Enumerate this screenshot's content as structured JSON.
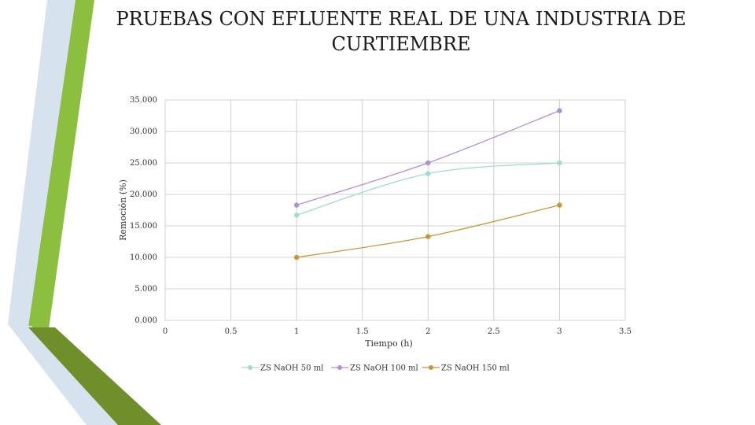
{
  "slide": {
    "title_line1": "PRUEBAS CON EFLUENTE REAL DE UNA INDUSTRIA DE",
    "title_line2": "CURTIEMBRE",
    "accent_colors": {
      "green": "#8cbf3f",
      "dark_green": "#6e8f2a",
      "light_blue": "#d6e2ee"
    }
  },
  "chart_data": {
    "type": "line",
    "xlabel": "Tiempo (h)",
    "ylabel": "Remoción (%)",
    "xlim": [
      0,
      3.5
    ],
    "ylim": [
      0,
      35
    ],
    "x_ticks": [
      "0",
      "0.5",
      "1",
      "1.5",
      "2",
      "2.5",
      "3",
      "3.5"
    ],
    "y_ticks": [
      "0.000",
      "5.000",
      "10.000",
      "15.000",
      "20.000",
      "25.000",
      "30.000",
      "35.000"
    ],
    "grid": true,
    "legend_position": "bottom",
    "series": [
      {
        "name": "ZS NaOH 50 ml",
        "color": "#9fdcd0",
        "x": [
          1,
          2,
          3
        ],
        "y": [
          16.7,
          23.3,
          25.0
        ]
      },
      {
        "name": "ZS NaOH 100 ml",
        "color": "#b08fd4",
        "x": [
          1,
          2,
          3
        ],
        "y": [
          18.3,
          25.0,
          33.3
        ]
      },
      {
        "name": "ZS NaOH 150 ml",
        "color": "#c8963a",
        "x": [
          1,
          2,
          3
        ],
        "y": [
          10.0,
          13.3,
          18.3
        ]
      }
    ]
  }
}
